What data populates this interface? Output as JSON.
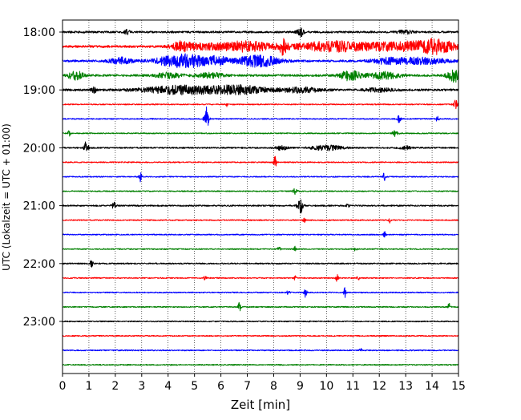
{
  "chart_data": {
    "type": "line",
    "title": "",
    "xlabel": "Zeit  [min]",
    "ylabel": "UTC (Lokalzeit = UTC + 01:00)",
    "xlim": [
      0,
      15
    ],
    "x_ticks": [
      "0",
      "1",
      "2",
      "3",
      "4",
      "5",
      "6",
      "7",
      "8",
      "9",
      "10",
      "11",
      "12",
      "13",
      "14",
      "15"
    ],
    "y_ticks": [
      {
        "label": "18:00",
        "row": 0
      },
      {
        "label": "19:00",
        "row": 4
      },
      {
        "label": "20:00",
        "row": 8
      },
      {
        "label": "21:00",
        "row": 12
      },
      {
        "label": "22:00",
        "row": 16
      },
      {
        "label": "23:00",
        "row": 20
      }
    ],
    "trace_interval_min": 15,
    "colors": [
      "#000000",
      "#ff0000",
      "#0000ff",
      "#008000"
    ],
    "grid": "vertical dotted at each minute",
    "traces": [
      {
        "start": "18:00",
        "color": "#000000",
        "noise": 1.2,
        "events": [
          {
            "t": 2.45,
            "amp": 2.5,
            "dur": 0.1
          },
          {
            "t": 9.0,
            "amp": 6,
            "dur": 0.12
          },
          {
            "t": 13.0,
            "amp": 2,
            "dur": 0.3
          }
        ]
      },
      {
        "start": "18:15",
        "color": "#ff0000",
        "noise": 1.4,
        "events": [
          {
            "t": 4.5,
            "amp": 6,
            "dur": 0.3
          },
          {
            "t": 5.2,
            "amp": 3,
            "dur": 0.8
          },
          {
            "t": 6.9,
            "amp": 6,
            "dur": 1.0
          },
          {
            "t": 8.35,
            "amp": 8,
            "dur": 0.15
          },
          {
            "t": 10.3,
            "amp": 6,
            "dur": 1.6
          },
          {
            "t": 13.0,
            "amp": 5,
            "dur": 1.2
          },
          {
            "t": 14.2,
            "amp": 7,
            "dur": 0.7
          }
        ]
      },
      {
        "start": "18:30",
        "color": "#0000ff",
        "noise": 1.3,
        "events": [
          {
            "t": 2.2,
            "amp": 4,
            "dur": 0.4
          },
          {
            "t": 4.6,
            "amp": 8,
            "dur": 1.0
          },
          {
            "t": 5.9,
            "amp": 4,
            "dur": 0.4
          },
          {
            "t": 7.4,
            "amp": 7,
            "dur": 0.8
          },
          {
            "t": 12.2,
            "amp": 3,
            "dur": 0.5
          },
          {
            "t": 13.5,
            "amp": 4,
            "dur": 1.0
          }
        ]
      },
      {
        "start": "18:45",
        "color": "#008000",
        "noise": 1.3,
        "events": [
          {
            "t": 0.5,
            "amp": 5,
            "dur": 0.3
          },
          {
            "t": 4.0,
            "amp": 3,
            "dur": 0.5
          },
          {
            "t": 5.6,
            "amp": 3,
            "dur": 0.5
          },
          {
            "t": 10.9,
            "amp": 6,
            "dur": 0.4
          },
          {
            "t": 12.2,
            "amp": 4,
            "dur": 0.6
          },
          {
            "t": 14.85,
            "amp": 8,
            "dur": 0.25
          }
        ]
      },
      {
        "start": "19:00",
        "color": "#000000",
        "noise": 1.3,
        "events": [
          {
            "t": 1.2,
            "amp": 3,
            "dur": 0.1
          },
          {
            "t": 4.5,
            "amp": 5,
            "dur": 1.4
          },
          {
            "t": 6.7,
            "amp": 5,
            "dur": 1.0
          },
          {
            "t": 9.0,
            "amp": 3,
            "dur": 0.8
          },
          {
            "t": 12.0,
            "amp": 2,
            "dur": 0.6
          }
        ]
      },
      {
        "start": "19:15",
        "color": "#ff0000",
        "noise": 0.7,
        "events": [
          {
            "t": 6.2,
            "amp": 3,
            "dur": 0.05
          },
          {
            "t": 14.9,
            "amp": 5,
            "dur": 0.1
          }
        ]
      },
      {
        "start": "19:30",
        "color": "#0000ff",
        "noise": 0.7,
        "events": [
          {
            "t": 5.45,
            "amp": 16,
            "dur": 0.08
          },
          {
            "t": 12.75,
            "amp": 5,
            "dur": 0.06
          },
          {
            "t": 14.2,
            "amp": 3,
            "dur": 0.06
          }
        ]
      },
      {
        "start": "19:45",
        "color": "#008000",
        "noise": 0.7,
        "events": [
          {
            "t": 0.25,
            "amp": 4,
            "dur": 0.05
          },
          {
            "t": 12.6,
            "amp": 4,
            "dur": 0.1
          }
        ]
      },
      {
        "start": "20:00",
        "color": "#000000",
        "noise": 0.9,
        "events": [
          {
            "t": 0.9,
            "amp": 8,
            "dur": 0.08
          },
          {
            "t": 8.3,
            "amp": 3,
            "dur": 0.2
          },
          {
            "t": 10.0,
            "amp": 3,
            "dur": 0.6
          },
          {
            "t": 13.0,
            "amp": 2,
            "dur": 0.2
          }
        ]
      },
      {
        "start": "20:15",
        "color": "#ff0000",
        "noise": 0.7,
        "events": [
          {
            "t": 8.05,
            "amp": 8,
            "dur": 0.05
          }
        ]
      },
      {
        "start": "20:30",
        "color": "#0000ff",
        "noise": 0.7,
        "events": [
          {
            "t": 2.95,
            "amp": 6,
            "dur": 0.05
          },
          {
            "t": 12.2,
            "amp": 7,
            "dur": 0.05
          }
        ]
      },
      {
        "start": "20:45",
        "color": "#008000",
        "noise": 0.7,
        "events": [
          {
            "t": 8.8,
            "amp": 4,
            "dur": 0.08
          }
        ]
      },
      {
        "start": "21:00",
        "color": "#000000",
        "noise": 0.9,
        "events": [
          {
            "t": 1.95,
            "amp": 4,
            "dur": 0.08
          },
          {
            "t": 9.0,
            "amp": 10,
            "dur": 0.1
          },
          {
            "t": 10.8,
            "amp": 3,
            "dur": 0.05
          }
        ]
      },
      {
        "start": "21:15",
        "color": "#ff0000",
        "noise": 0.7,
        "events": [
          {
            "t": 9.15,
            "amp": 4,
            "dur": 0.05
          },
          {
            "t": 12.4,
            "amp": 3,
            "dur": 0.05
          }
        ]
      },
      {
        "start": "21:30",
        "color": "#0000ff",
        "noise": 0.7,
        "events": [
          {
            "t": 12.2,
            "amp": 4,
            "dur": 0.05
          }
        ]
      },
      {
        "start": "21:45",
        "color": "#008000",
        "noise": 0.7,
        "events": [
          {
            "t": 8.2,
            "amp": 3,
            "dur": 0.05
          },
          {
            "t": 8.8,
            "amp": 3,
            "dur": 0.05
          },
          {
            "t": 11.1,
            "amp": 3,
            "dur": 0.05
          }
        ]
      },
      {
        "start": "22:00",
        "color": "#000000",
        "noise": 0.8,
        "events": [
          {
            "t": 1.1,
            "amp": 6,
            "dur": 0.05
          }
        ]
      },
      {
        "start": "22:15",
        "color": "#ff0000",
        "noise": 0.7,
        "events": [
          {
            "t": 5.4,
            "amp": 3,
            "dur": 0.05
          },
          {
            "t": 8.8,
            "amp": 3,
            "dur": 0.05
          },
          {
            "t": 10.4,
            "amp": 4,
            "dur": 0.05
          },
          {
            "t": 11.2,
            "amp": 3,
            "dur": 0.05
          }
        ]
      },
      {
        "start": "22:30",
        "color": "#0000ff",
        "noise": 0.7,
        "events": [
          {
            "t": 8.55,
            "amp": 3,
            "dur": 0.05
          },
          {
            "t": 9.2,
            "amp": 6,
            "dur": 0.05
          },
          {
            "t": 10.7,
            "amp": 6,
            "dur": 0.05
          }
        ]
      },
      {
        "start": "22:45",
        "color": "#008000",
        "noise": 0.7,
        "events": [
          {
            "t": 6.7,
            "amp": 6,
            "dur": 0.05
          },
          {
            "t": 14.65,
            "amp": 6,
            "dur": 0.05
          }
        ]
      },
      {
        "start": "23:00",
        "color": "#000000",
        "noise": 0.7,
        "events": []
      },
      {
        "start": "23:15",
        "color": "#ff0000",
        "noise": 0.7,
        "events": []
      },
      {
        "start": "23:30",
        "color": "#0000ff",
        "noise": 0.7,
        "events": [
          {
            "t": 11.3,
            "amp": 3,
            "dur": 0.05
          }
        ]
      },
      {
        "start": "23:45",
        "color": "#008000",
        "noise": 0.7,
        "events": []
      }
    ]
  }
}
